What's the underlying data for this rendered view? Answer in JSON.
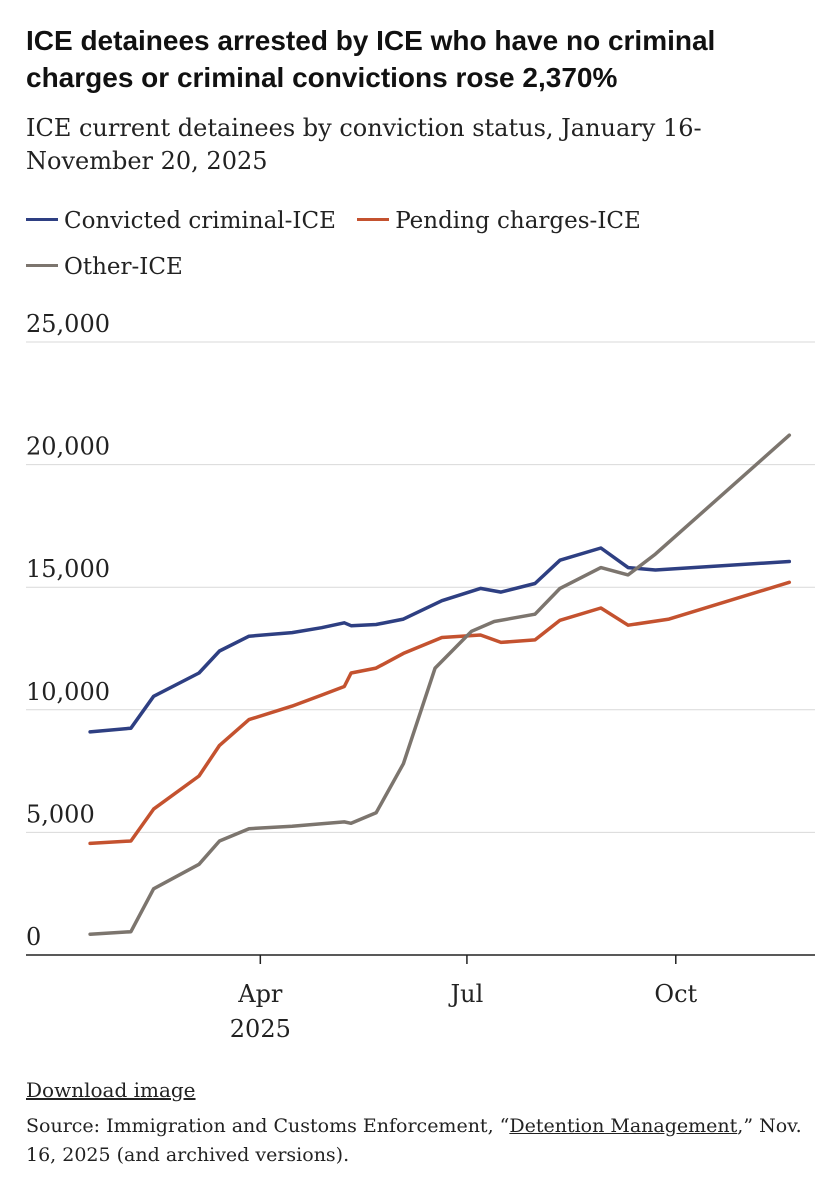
{
  "title": "ICE detainees arrested by ICE who have no criminal charges or criminal convictions rose 2,370%",
  "subtitle": "ICE current detainees by conviction status, January 16-November 20, 2025",
  "footer": {
    "download_label": "Download image",
    "source_prefix": "Source: Immigration and Customs Enforcement, “",
    "source_link": "Detention Management",
    "source_suffix": ",” Nov. 16, 2025 (and archived versions)."
  },
  "chart_data": {
    "type": "line",
    "xlim": [
      "2025-01-01",
      "2025-11-30"
    ],
    "ylim": [
      0,
      25000
    ],
    "yticks": [
      {
        "value": 0,
        "label": "0"
      },
      {
        "value": 5000,
        "label": "5,000"
      },
      {
        "value": 10000,
        "label": "10,000"
      },
      {
        "value": 15000,
        "label": "15,000"
      },
      {
        "value": 20000,
        "label": "20,000"
      },
      {
        "value": 25000,
        "label": "25,000"
      }
    ],
    "xticks": [
      {
        "date": "2025-04-01",
        "label": "Apr",
        "sublabel": "2025"
      },
      {
        "date": "2025-07-01",
        "label": "Jul",
        "sublabel": ""
      },
      {
        "date": "2025-10-01",
        "label": "Oct",
        "sublabel": ""
      }
    ],
    "grid": true,
    "legend_position": "top",
    "series": [
      {
        "name": "Convicted criminal-ICE",
        "color": "#2e3f82",
        "points": [
          [
            "2025-01-16",
            9100
          ],
          [
            "2025-02-03",
            9250
          ],
          [
            "2025-02-13",
            10550
          ],
          [
            "2025-03-05",
            11500
          ],
          [
            "2025-03-14",
            12400
          ],
          [
            "2025-03-27",
            13000
          ],
          [
            "2025-04-15",
            13150
          ],
          [
            "2025-04-28",
            13350
          ],
          [
            "2025-05-08",
            13550
          ],
          [
            "2025-05-11",
            13430
          ],
          [
            "2025-05-22",
            13480
          ],
          [
            "2025-06-03",
            13700
          ],
          [
            "2025-06-20",
            14450
          ],
          [
            "2025-07-07",
            14950
          ],
          [
            "2025-07-16",
            14800
          ],
          [
            "2025-07-31",
            15150
          ],
          [
            "2025-08-11",
            16100
          ],
          [
            "2025-08-29",
            16600
          ],
          [
            "2025-09-10",
            15800
          ],
          [
            "2025-09-22",
            15700
          ],
          [
            "2025-11-20",
            16050
          ]
        ]
      },
      {
        "name": "Pending charges-ICE",
        "color": "#c4522f",
        "points": [
          [
            "2025-01-16",
            4550
          ],
          [
            "2025-02-03",
            4650
          ],
          [
            "2025-02-13",
            5950
          ],
          [
            "2025-03-05",
            7300
          ],
          [
            "2025-03-14",
            8550
          ],
          [
            "2025-03-27",
            9600
          ],
          [
            "2025-04-15",
            10150
          ],
          [
            "2025-04-28",
            10600
          ],
          [
            "2025-05-08",
            10950
          ],
          [
            "2025-05-11",
            11500
          ],
          [
            "2025-05-22",
            11700
          ],
          [
            "2025-06-03",
            12300
          ],
          [
            "2025-06-20",
            12950
          ],
          [
            "2025-07-07",
            13050
          ],
          [
            "2025-07-16",
            12750
          ],
          [
            "2025-07-31",
            12850
          ],
          [
            "2025-08-11",
            13650
          ],
          [
            "2025-08-29",
            14150
          ],
          [
            "2025-09-10",
            13450
          ],
          [
            "2025-09-28",
            13700
          ],
          [
            "2025-11-20",
            15200
          ]
        ]
      },
      {
        "name": "Other-ICE",
        "color": "#7c756e",
        "points": [
          [
            "2025-01-16",
            850
          ],
          [
            "2025-02-03",
            950
          ],
          [
            "2025-02-13",
            2700
          ],
          [
            "2025-03-05",
            3700
          ],
          [
            "2025-03-14",
            4650
          ],
          [
            "2025-03-27",
            5150
          ],
          [
            "2025-04-15",
            5250
          ],
          [
            "2025-04-28",
            5350
          ],
          [
            "2025-05-08",
            5430
          ],
          [
            "2025-05-11",
            5370
          ],
          [
            "2025-05-22",
            5800
          ],
          [
            "2025-06-03",
            7800
          ],
          [
            "2025-06-17",
            11700
          ],
          [
            "2025-07-03",
            13200
          ],
          [
            "2025-07-13",
            13600
          ],
          [
            "2025-07-31",
            13900
          ],
          [
            "2025-08-11",
            14950
          ],
          [
            "2025-08-29",
            15800
          ],
          [
            "2025-09-10",
            15500
          ],
          [
            "2025-09-22",
            16350
          ],
          [
            "2025-11-20",
            21200
          ]
        ]
      }
    ]
  }
}
